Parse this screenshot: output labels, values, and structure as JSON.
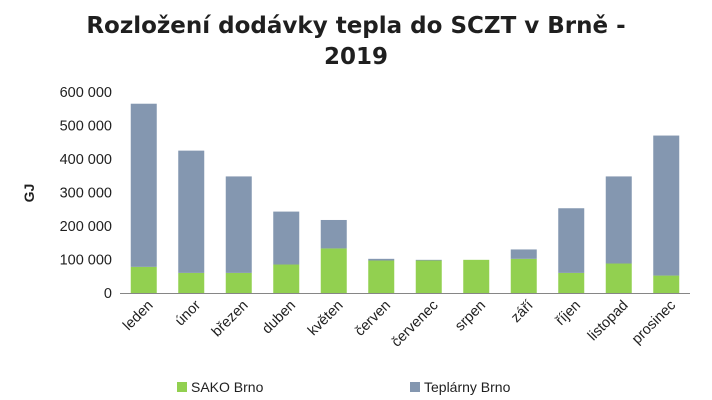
{
  "chart_data": {
    "type": "bar",
    "stacked": true,
    "title_lines": [
      "Rozložení dodávky tepla do SCZT v Brně -",
      "2019"
    ],
    "xlabel": "",
    "ylabel": "GJ",
    "ylim": [
      0,
      600000
    ],
    "yticks": [
      0,
      100000,
      200000,
      300000,
      400000,
      500000,
      600000
    ],
    "ytick_labels": [
      "0",
      "100 000",
      "200 000",
      "300 000",
      "400 000",
      "500 000",
      "600 000"
    ],
    "grid": false,
    "legend_position": "bottom",
    "categories": [
      "leden",
      "únor",
      "březen",
      "duben",
      "květen",
      "červen",
      "červenec",
      "srpen",
      "září",
      "říjen",
      "listopad",
      "prosinec"
    ],
    "series": [
      {
        "name": "SAKO Brno",
        "color": "#92d050",
        "values": [
          78000,
          60000,
          60000,
          85000,
          133000,
          97000,
          97000,
          99000,
          102000,
          60000,
          88000,
          52000
        ]
      },
      {
        "name": "Teplárny Brno",
        "color": "#8497b0",
        "values": [
          487000,
          365000,
          288000,
          158000,
          85000,
          5000,
          2000,
          0,
          28000,
          193000,
          260000,
          418000
        ]
      }
    ]
  }
}
